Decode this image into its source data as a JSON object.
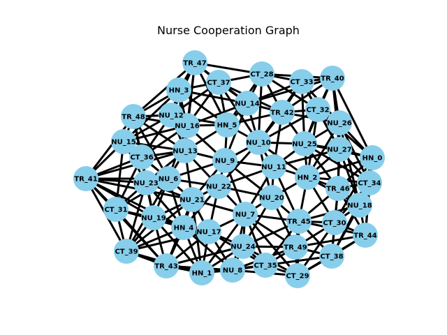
{
  "title": "Nurse Cooperation Graph",
  "colors": {
    "node_fill": "#87CEEB",
    "edge": "#000000",
    "background": "#ffffff",
    "text": "#000000"
  },
  "node_labels": [
    "HN_0",
    "HN_1",
    "HN_2",
    "HN_3",
    "HN_4",
    "HN_5",
    "NU_6",
    "NU_7",
    "NU_8",
    "NU_9",
    "NU_10",
    "NU_11",
    "NU_12",
    "NU_13",
    "NU_14",
    "NU_15",
    "NU_16",
    "NU_17",
    "NU_18",
    "NU_19",
    "NU_20",
    "NU_21",
    "NU_22",
    "NU_23",
    "NU_24",
    "NU_25",
    "NU_26",
    "NU_27",
    "CT_28",
    "CT_29",
    "CT_30",
    "CT_31",
    "CT_32",
    "CT_33",
    "CT_34",
    "CT_35",
    "CT_36",
    "CT_37",
    "CT_38",
    "CT_39",
    "TR_40",
    "TR_41",
    "TR_42",
    "TR_43",
    "TR_44",
    "TR_45",
    "TR_46",
    "TR_47",
    "TR_48",
    "TR_49"
  ]
}
